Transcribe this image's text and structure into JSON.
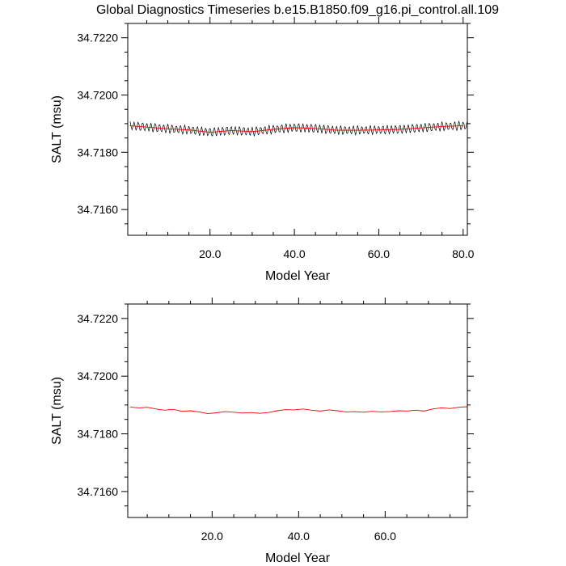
{
  "title": "Global Diagnostics Timeseries b.e15.B1850.f09_g16.pi_control.all.109",
  "chart_data": [
    {
      "type": "line",
      "xlabel": "Model Year",
      "ylabel": "SALT (msu)",
      "xlim": [
        0.5,
        81
      ],
      "ylim": [
        34.7151,
        34.7225
      ],
      "x_ticks": [
        20,
        40,
        60,
        80
      ],
      "x_tick_labels": [
        "20.0",
        "40.0",
        "60.0",
        "80.0"
      ],
      "y_ticks": [
        34.716,
        34.718,
        34.72,
        34.722
      ],
      "y_tick_labels": [
        "34.7160",
        "34.7180",
        "34.7200",
        "34.7220"
      ],
      "grid": false,
      "series": [
        {
          "color": "#000000",
          "style": "monthly",
          "annual_x": [
            1,
            5,
            10,
            15,
            20,
            25,
            30,
            35,
            40,
            45,
            50,
            55,
            60,
            65,
            70,
            75,
            80
          ],
          "annual_y": [
            34.71893,
            34.71888,
            34.71882,
            34.71878,
            34.7187,
            34.71876,
            34.71872,
            34.7188,
            34.71886,
            34.71883,
            34.71877,
            34.71877,
            34.71878,
            34.7188,
            34.71885,
            34.7189,
            34.71893
          ],
          "seasonal_amplitude": 0.00013
        },
        {
          "color": "#ff0000",
          "style": "annual",
          "x": [
            1,
            5,
            10,
            15,
            20,
            25,
            30,
            35,
            40,
            45,
            50,
            55,
            60,
            65,
            70,
            75,
            80
          ],
          "y": [
            34.71893,
            34.71888,
            34.71882,
            34.71878,
            34.7187,
            34.71876,
            34.71872,
            34.7188,
            34.71886,
            34.71883,
            34.71877,
            34.71877,
            34.71878,
            34.7188,
            34.71885,
            34.7189,
            34.71893
          ]
        }
      ]
    },
    {
      "type": "line",
      "xlabel": "Model Year",
      "ylabel": "SALT (msu)",
      "xlim": [
        0.5,
        79
      ],
      "ylim": [
        34.7151,
        34.7225
      ],
      "x_ticks": [
        20,
        40,
        60
      ],
      "x_tick_labels": [
        "20.0",
        "40.0",
        "60.0"
      ],
      "y_ticks": [
        34.716,
        34.718,
        34.72,
        34.722
      ],
      "y_tick_labels": [
        "34.7160",
        "34.7180",
        "34.7200",
        "34.7220"
      ],
      "grid": false,
      "series": [
        {
          "color": "#ff0000",
          "style": "annual",
          "x": [
            1,
            3,
            5,
            7,
            9,
            11,
            13,
            15,
            17,
            19,
            21,
            23,
            25,
            27,
            29,
            31,
            33,
            35,
            37,
            39,
            41,
            43,
            45,
            47,
            49,
            51,
            53,
            55,
            57,
            59,
            61,
            63,
            65,
            67,
            69,
            71,
            73,
            75,
            77,
            79
          ],
          "y": [
            34.71893,
            34.7189,
            34.71892,
            34.71886,
            34.71882,
            34.71885,
            34.71878,
            34.7188,
            34.71876,
            34.7187,
            34.71873,
            34.71877,
            34.71875,
            34.71872,
            34.71874,
            34.71871,
            34.71874,
            34.7188,
            34.71884,
            34.71883,
            34.71886,
            34.71882,
            34.71879,
            34.71883,
            34.7188,
            34.71876,
            34.71877,
            34.71875,
            34.71878,
            34.71876,
            34.71877,
            34.7188,
            34.71879,
            34.71882,
            34.71879,
            34.71886,
            34.7189,
            34.71888,
            34.71892,
            34.71894
          ]
        }
      ]
    }
  ]
}
